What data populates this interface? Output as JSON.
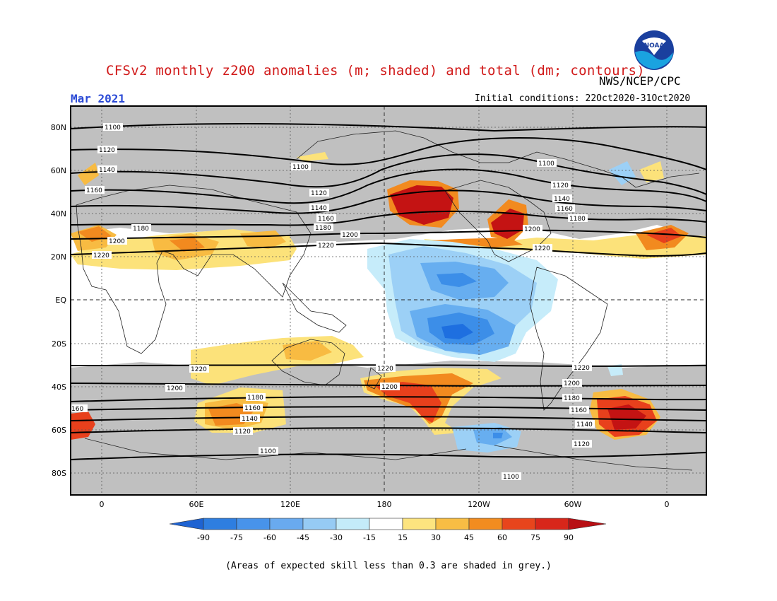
{
  "header": {
    "title": "CFSv2 monthly z200 anomalies (m; shaded) and total (dm; contours)",
    "agency": "NWS/NCEP/CPC",
    "month": "Mar 2021",
    "initial_conditions": "Initial conditions: 22Oct2020-31Oct2020",
    "logo_text": "NOAA"
  },
  "map": {
    "lat_labels": [
      "80N",
      "60N",
      "40N",
      "20N",
      "EQ",
      "20S",
      "40S",
      "60S",
      "80S"
    ],
    "lon_labels": [
      "0",
      "60E",
      "120E",
      "180",
      "120W",
      "60W",
      "0"
    ],
    "contour_labels": [
      "1100",
      "1120",
      "1140",
      "1160",
      "1180",
      "1200",
      "1220"
    ],
    "colors": {
      "grey_low_skill": "#c0c0c0",
      "deep_blue": "#1e6fe0",
      "mid_blue": "#3c8ee8",
      "light_blue": "#67aef0",
      "pale_blue": "#9cd0f6",
      "faint_blue": "#c6ecfa",
      "yellow": "#fce27a",
      "light_orange": "#f8bb42",
      "orange": "#f28a1f",
      "red": "#e8401c",
      "dark_red": "#c41313"
    }
  },
  "colorbar": {
    "labels": [
      "-90",
      "-75",
      "-60",
      "-45",
      "-30",
      "-15",
      "15",
      "30",
      "45",
      "60",
      "75",
      "90"
    ],
    "colors": [
      "#1e63d2",
      "#2e7ee0",
      "#4893ea",
      "#69aaef",
      "#96cbf4",
      "#c4ebf9",
      "#ffffff",
      "#fde47f",
      "#f8bd44",
      "#f28c1f",
      "#e8451c",
      "#d8261a",
      "#b80f14"
    ]
  },
  "footer": {
    "note": "(Areas of expected skill less than 0.3 are shaded in grey.)"
  }
}
